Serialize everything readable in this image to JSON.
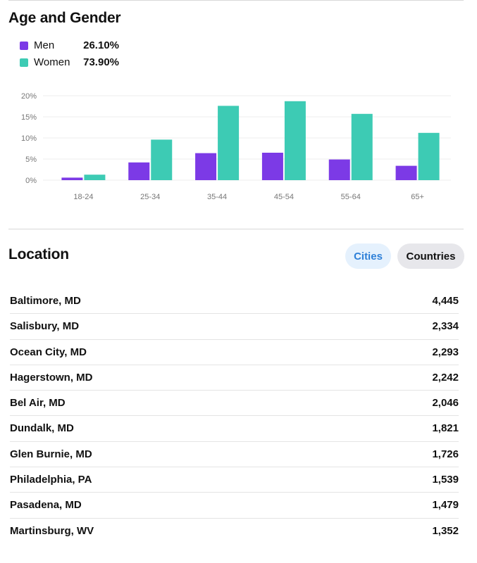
{
  "age_gender": {
    "title": "Age and Gender",
    "legend": [
      {
        "label": "Men",
        "percent": "26.10%",
        "color": "#7c3ae6"
      },
      {
        "label": "Women",
        "percent": "73.90%",
        "color": "#3dcbb4"
      }
    ]
  },
  "chart_data": {
    "type": "bar",
    "categories": [
      "18-24",
      "25-34",
      "35-44",
      "45-54",
      "55-64",
      "65+"
    ],
    "series": [
      {
        "name": "Men",
        "color": "#7c3ae6",
        "values": [
          0.6,
          4.2,
          6.4,
          6.5,
          4.9,
          3.4
        ]
      },
      {
        "name": "Women",
        "color": "#3dcbb4",
        "values": [
          1.3,
          9.6,
          17.6,
          18.7,
          15.7,
          11.2
        ]
      }
    ],
    "yticks": [
      "0%",
      "5%",
      "10%",
      "15%",
      "20%"
    ],
    "ylim": [
      0,
      20
    ],
    "grid": true
  },
  "location": {
    "title": "Location",
    "tabs": [
      {
        "label": "Cities",
        "selected": true
      },
      {
        "label": "Countries",
        "selected": false
      }
    ],
    "rows": [
      {
        "name": "Baltimore, MD",
        "value": "4,445"
      },
      {
        "name": "Salisbury, MD",
        "value": "2,334"
      },
      {
        "name": "Ocean City, MD",
        "value": "2,293"
      },
      {
        "name": "Hagerstown, MD",
        "value": "2,242"
      },
      {
        "name": "Bel Air, MD",
        "value": "2,046"
      },
      {
        "name": "Dundalk, MD",
        "value": "1,821"
      },
      {
        "name": "Glen Burnie, MD",
        "value": "1,726"
      },
      {
        "name": "Philadelphia, PA",
        "value": "1,539"
      },
      {
        "name": "Pasadena, MD",
        "value": "1,479"
      },
      {
        "name": "Martinsburg, WV",
        "value": "1,352"
      }
    ]
  }
}
